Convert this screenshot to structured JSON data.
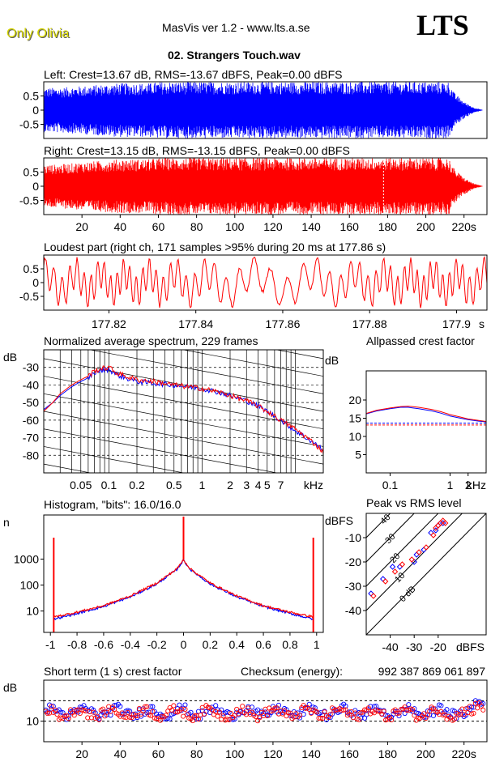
{
  "header": {
    "artist": "Only Olivia",
    "app": "MasVis ver 1.2 - www.lts.a.se",
    "logo": "LTS",
    "file": "02. Strangers Touch.wav"
  },
  "colors": {
    "left": "#0000ff",
    "right": "#ff0000",
    "grid": "#000000",
    "artist": "#d4d400"
  },
  "chart_data": [
    {
      "id": "left-waveform",
      "type": "area",
      "title": "Left: Crest=13.67 dB, RMS=-13.67 dBFS, Peak=0.00 dBFS",
      "ylim": [
        -1,
        1
      ],
      "xlim": [
        0,
        232
      ],
      "yticks": [
        0.5,
        0,
        -0.5
      ],
      "ytick_labels": [
        "0.5",
        "0",
        "-0.5"
      ],
      "series": [
        {
          "color": "#0000ff",
          "envelope": [
            [
              0,
              0.78
            ],
            [
              10,
              0.8
            ],
            [
              20,
              0.85
            ],
            [
              40,
              0.95
            ],
            [
              55,
              0.95
            ],
            [
              60,
              1.0
            ],
            [
              100,
              1.0
            ],
            [
              140,
              1.0
            ],
            [
              170,
              1.0
            ],
            [
              200,
              1.0
            ],
            [
              212,
              1.0
            ],
            [
              215,
              0.6
            ],
            [
              220,
              0.3
            ],
            [
              225,
              0.1
            ],
            [
              230,
              0.0
            ]
          ]
        }
      ]
    },
    {
      "id": "right-waveform",
      "type": "area",
      "title": "Right: Crest=13.15 dB, RMS=-13.15 dBFS, Peak=0.00 dBFS",
      "ylim": [
        -1,
        1
      ],
      "xlim": [
        0,
        232
      ],
      "yticks": [
        0.5,
        0,
        -0.5
      ],
      "ytick_labels": [
        "0.5",
        "0",
        "-0.5"
      ],
      "xticks": [
        20,
        40,
        60,
        80,
        100,
        120,
        140,
        160,
        180,
        200,
        220
      ],
      "xtick_labels": [
        "20",
        "40",
        "60",
        "80",
        "100",
        "120",
        "140",
        "160",
        "180",
        "200",
        "220s"
      ],
      "marker_time": 177.86,
      "series": [
        {
          "color": "#ff0000",
          "envelope": [
            [
              0,
              0.75
            ],
            [
              10,
              0.78
            ],
            [
              20,
              0.85
            ],
            [
              40,
              0.95
            ],
            [
              55,
              0.95
            ],
            [
              60,
              1.0
            ],
            [
              100,
              1.0
            ],
            [
              140,
              1.0
            ],
            [
              170,
              1.0
            ],
            [
              200,
              1.0
            ],
            [
              212,
              1.0
            ],
            [
              215,
              0.6
            ],
            [
              220,
              0.3
            ],
            [
              225,
              0.1
            ],
            [
              230,
              0.0
            ]
          ]
        }
      ]
    },
    {
      "id": "loudest-part",
      "type": "line",
      "title": "Loudest part (right ch, 171 samples >95% during 20 ms at 177.86 s)",
      "xlim": [
        177.805,
        177.907
      ],
      "ylim": [
        -1,
        1
      ],
      "yticks": [
        0.5,
        0,
        -0.5
      ],
      "ytick_labels": [
        "0.5",
        "0",
        "-0.5"
      ],
      "xticks": [
        177.82,
        177.84,
        177.86,
        177.88,
        177.9
      ],
      "xtick_labels": [
        "177.82",
        "177.84",
        "177.86",
        "177.88",
        "177.9"
      ],
      "unit_label": "s",
      "series": [
        {
          "color": "#ff0000"
        }
      ]
    },
    {
      "id": "spectrum",
      "type": "line",
      "title": "Normalized average spectrum, 229 frames",
      "ylabel": "dB",
      "xunit": "kHz",
      "xscale": "log",
      "xlim": [
        0.02,
        20
      ],
      "ylim": [
        -90,
        -20
      ],
      "yticks": [
        -30,
        -40,
        -50,
        -60,
        -70,
        -80
      ],
      "ytick_labels": [
        "-30",
        "-40",
        "-50",
        "-60",
        "-70",
        "-80"
      ],
      "xtick_labels": [
        "0.05",
        "0.1",
        "0.2",
        "0.5",
        "1",
        "2",
        "3",
        "4",
        "5",
        "7"
      ],
      "xtick_values": [
        0.05,
        0.1,
        0.2,
        0.5,
        1,
        2,
        3,
        4,
        5,
        7
      ],
      "series": [
        {
          "color": "#0000ff",
          "x": [
            0.02,
            0.025,
            0.03,
            0.04,
            0.05,
            0.06,
            0.07,
            0.08,
            0.1,
            0.12,
            0.15,
            0.2,
            0.3,
            0.5,
            0.7,
            1,
            1.5,
            2,
            3,
            4,
            5,
            7,
            10,
            15,
            20
          ],
          "y": [
            -54,
            -50,
            -46,
            -41,
            -38,
            -36,
            -33,
            -32,
            -31,
            -34,
            -36,
            -38,
            -39,
            -40,
            -41,
            -42,
            -44,
            -46,
            -49,
            -52,
            -55,
            -60,
            -66,
            -72,
            -77
          ]
        },
        {
          "color": "#ff0000",
          "x": [
            0.02,
            0.025,
            0.03,
            0.04,
            0.05,
            0.06,
            0.07,
            0.08,
            0.1,
            0.12,
            0.15,
            0.2,
            0.3,
            0.5,
            0.7,
            1,
            1.5,
            2,
            3,
            4,
            5,
            7,
            10,
            15,
            20
          ],
          "y": [
            -55,
            -50,
            -45,
            -40,
            -37,
            -35,
            -32,
            -31,
            -30,
            -33,
            -35,
            -37,
            -38,
            -40,
            -41,
            -42,
            -44,
            -46,
            -49,
            -52,
            -55,
            -60,
            -65,
            -72,
            -78
          ]
        }
      ]
    },
    {
      "id": "allpassed-crest",
      "type": "line",
      "title": "Allpassed crest factor",
      "ylabel": "dB",
      "xunit": "kHz",
      "xscale": "log",
      "xlim": [
        0.04,
        4
      ],
      "ylim": [
        0,
        28
      ],
      "yticks": [
        20,
        15,
        10,
        5
      ],
      "ytick_labels": [
        "20",
        "15",
        "10",
        "5"
      ],
      "xtick_labels": [
        "0.1",
        "1",
        "2"
      ],
      "xtick_values": [
        0.1,
        1,
        2
      ],
      "ref_lines": [
        {
          "color": "#0000ff",
          "y": 13.67
        },
        {
          "color": "#ff0000",
          "y": 13.15
        }
      ],
      "series": [
        {
          "color": "#0000ff",
          "x": [
            0.04,
            0.06,
            0.1,
            0.15,
            0.2,
            0.3,
            0.5,
            0.7,
            1,
            1.5,
            2,
            3,
            4
          ],
          "y": [
            16.2,
            17.0,
            17.6,
            18.0,
            18.0,
            17.6,
            17.0,
            16.4,
            15.6,
            15.0,
            14.6,
            14.2,
            14.0
          ]
        },
        {
          "color": "#ff0000",
          "x": [
            0.04,
            0.06,
            0.1,
            0.15,
            0.2,
            0.3,
            0.5,
            0.7,
            1,
            1.5,
            2,
            3,
            4
          ],
          "y": [
            16.3,
            17.2,
            17.8,
            18.2,
            18.3,
            18.0,
            17.4,
            16.8,
            16.0,
            15.3,
            14.8,
            14.4,
            14.1
          ]
        }
      ]
    },
    {
      "id": "histogram",
      "type": "line",
      "title": "Histogram, \"bits\": 16.0/16.0",
      "ylabel": "n",
      "yscale": "log",
      "xlim": [
        -1.05,
        1.05
      ],
      "ylim": [
        1.5,
        50000
      ],
      "yticks": [
        1000,
        100,
        10
      ],
      "ytick_labels": [
        "1000",
        "100",
        "10"
      ],
      "xticks": [
        -1,
        -0.8,
        -0.6,
        -0.4,
        -0.2,
        0,
        0.2,
        0.4,
        0.6,
        0.8,
        1
      ],
      "xtick_labels": [
        "-1",
        "-0.8",
        "-0.6",
        "-0.4",
        "-0.2",
        "0",
        "0.2",
        "0.4",
        "0.6",
        "0.8",
        "1"
      ],
      "series": [
        {
          "color": "#0000ff",
          "x": [
            -0.97,
            -0.9,
            -0.8,
            -0.6,
            -0.4,
            -0.2,
            -0.05,
            0,
            0.05,
            0.2,
            0.4,
            0.6,
            0.8,
            0.9,
            0.97
          ],
          "y": [
            5,
            6,
            8,
            15,
            35,
            110,
            400,
            900,
            400,
            110,
            35,
            15,
            8,
            6,
            5
          ]
        },
        {
          "color": "#ff0000",
          "x": [
            -0.97,
            -0.9,
            -0.8,
            -0.6,
            -0.4,
            -0.2,
            -0.05,
            0,
            0.05,
            0.2,
            0.4,
            0.6,
            0.8,
            0.9,
            0.97
          ],
          "y": [
            6,
            7,
            9,
            16,
            38,
            120,
            420,
            950,
            420,
            120,
            38,
            16,
            9,
            7,
            6
          ]
        }
      ]
    },
    {
      "id": "peak-vs-rms",
      "type": "scatter",
      "title": "Peak vs RMS level",
      "ylabel": "dBFS",
      "xlabel": "dBFS",
      "xlim": [
        -50,
        0
      ],
      "ylim": [
        -50,
        0
      ],
      "yticks": [
        -10,
        -20,
        -30,
        -40
      ],
      "ytick_labels": [
        "-10",
        "-20",
        "-30",
        "-40"
      ],
      "xticks": [
        -40,
        -30,
        -20
      ],
      "xtick_labels": [
        "-40",
        "-30",
        "-20"
      ],
      "diag_labels": [
        "40",
        "30",
        "20",
        "10",
        "0 dB"
      ],
      "series": [
        {
          "color": "#0000ff",
          "x": [
            -48,
            -43,
            -39,
            -36,
            -30,
            -29,
            -26,
            -23,
            -21,
            -20,
            -19,
            -18
          ],
          "y": [
            -33,
            -27,
            -22,
            -22,
            -20,
            -17,
            -15,
            -8,
            -7,
            -5,
            -4,
            -4
          ]
        },
        {
          "color": "#ff0000",
          "x": [
            -47,
            -42,
            -38,
            -35,
            -31,
            -28,
            -25,
            -22,
            -21,
            -20,
            -19,
            -18,
            -17
          ],
          "y": [
            -34,
            -28,
            -24,
            -21,
            -19,
            -16,
            -14,
            -9,
            -6,
            -5,
            -4,
            -3,
            -4
          ]
        }
      ]
    },
    {
      "id": "short-term-crest",
      "type": "scatter",
      "title": "Short term (1 s) crest factor",
      "ylabel": "dB",
      "xlim": [
        0,
        232
      ],
      "ylim": [
        5,
        20
      ],
      "yticks": [
        10
      ],
      "ytick_labels": [
        "10"
      ],
      "ref_lines": [
        {
          "color": "#000000",
          "y": 15
        },
        {
          "color": "#000000",
          "y": 10
        }
      ],
      "xticks": [
        20,
        40,
        60,
        80,
        100,
        120,
        140,
        160,
        180,
        200,
        220
      ],
      "xtick_labels": [
        "20",
        "40",
        "60",
        "80",
        "100",
        "120",
        "140",
        "160",
        "180",
        "200",
        "220s"
      ],
      "checksum_label": "Checksum (energy):",
      "checksum": "992 387 869 061 897",
      "series": [
        {
          "color": "#0000ff",
          "mean": 12.2
        },
        {
          "color": "#ff0000",
          "mean": 12.0
        }
      ]
    }
  ]
}
